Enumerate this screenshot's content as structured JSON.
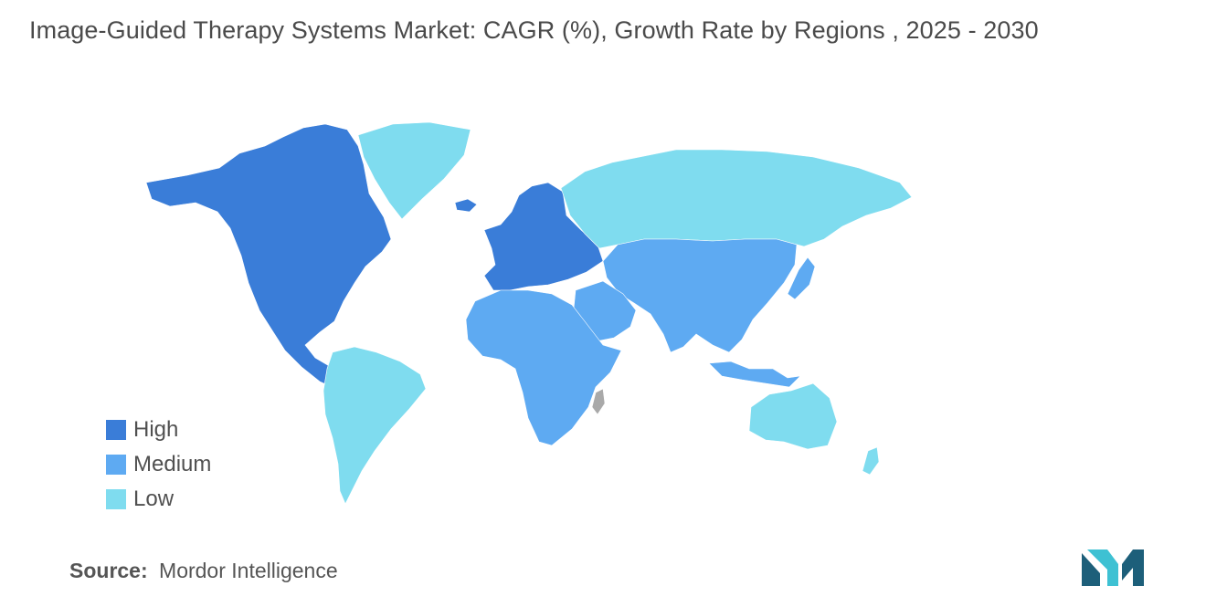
{
  "title": "Image-Guided Therapy Systems Market: CAGR (%), Growth Rate by Regions  , 2025 - 2030",
  "colors": {
    "high": "#3a7dd8",
    "medium": "#5eaaf2",
    "low": "#7fdcef",
    "no_data": "#a9a9a9",
    "logo_dark": "#1d5f7a",
    "logo_light": "#3ec1d3"
  },
  "legend": {
    "items": [
      {
        "key": "high",
        "label": "High"
      },
      {
        "key": "medium",
        "label": "Medium"
      },
      {
        "key": "low",
        "label": "Low"
      }
    ]
  },
  "regions": {
    "north_america": "high",
    "europe": "high",
    "south_america": "low",
    "greenland": "low",
    "russia": "low",
    "asia": "medium",
    "middle_east": "medium",
    "africa": "medium",
    "australia_nz": "low"
  },
  "source": {
    "label": "Source:",
    "value": "Mordor Intelligence"
  }
}
